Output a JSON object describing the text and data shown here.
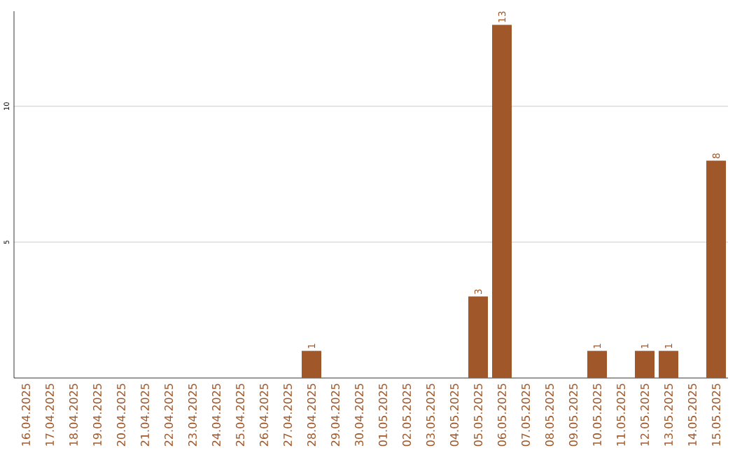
{
  "chart_data": {
    "type": "bar",
    "categories": [
      "16.04.2025",
      "17.04.2025",
      "18.04.2025",
      "19.04.2025",
      "20.04.2025",
      "21.04.2025",
      "22.04.2025",
      "23.04.2025",
      "24.04.2025",
      "25.04.2025",
      "26.04.2025",
      "27.04.2025",
      "28.04.2025",
      "29.04.2025",
      "30.04.2025",
      "01.05.2025",
      "02.05.2025",
      "03.05.2025",
      "04.05.2025",
      "05.05.2025",
      "06.05.2025",
      "07.05.2025",
      "08.05.2025",
      "09.05.2025",
      "10.05.2025",
      "11.05.2025",
      "12.05.2025",
      "13.05.2025",
      "14.05.2025",
      "15.05.2025"
    ],
    "values": [
      0,
      0,
      0,
      0,
      0,
      0,
      0,
      0,
      0,
      0,
      0,
      0,
      1,
      0,
      0,
      0,
      0,
      0,
      0,
      3,
      13,
      0,
      0,
      0,
      1,
      0,
      1,
      1,
      0,
      8
    ],
    "value_labels": [
      null,
      null,
      null,
      null,
      null,
      null,
      null,
      null,
      null,
      null,
      null,
      null,
      "1",
      null,
      null,
      null,
      null,
      null,
      null,
      "3",
      "13",
      null,
      null,
      null,
      "1",
      null,
      "1",
      "1",
      null,
      "8"
    ],
    "color": "#a0582a",
    "ylim": [
      0,
      13.5
    ],
    "yticks": [
      5,
      10
    ],
    "grid": "y"
  }
}
